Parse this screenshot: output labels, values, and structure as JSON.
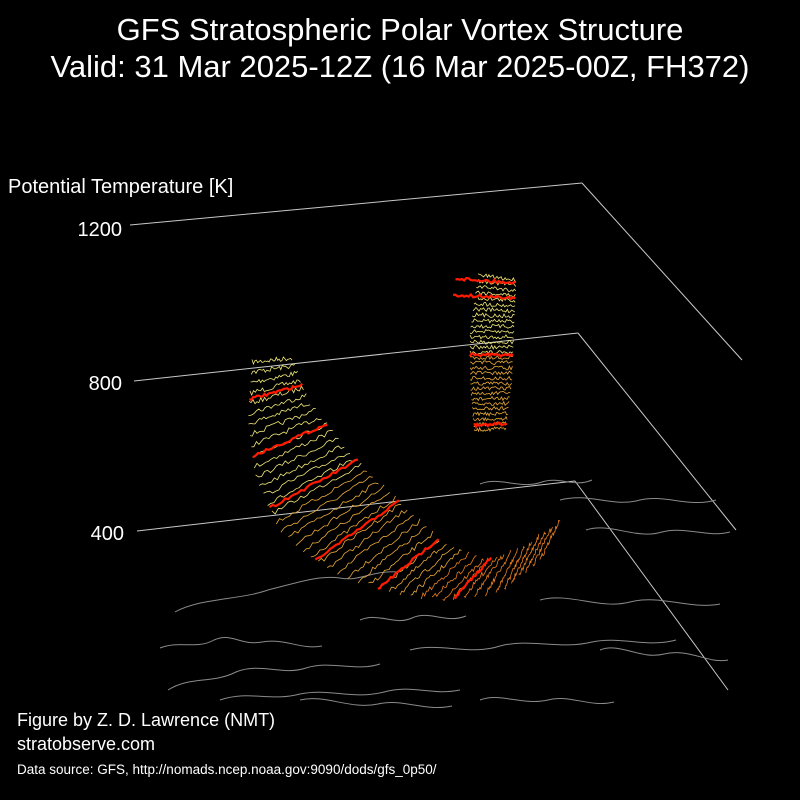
{
  "header": {
    "title": "GFS Stratospheric Polar Vortex Structure",
    "subtitle": "Valid: 31 Mar 2025-12Z  (16 Mar 2025-00Z, FH372)"
  },
  "credits": {
    "author": "Figure by Z. D. Lawrence (NMT)",
    "website": "stratobserve.com",
    "source": "Data source: GFS, http://nomads.ncep.noaa.gov:9090/dods/gfs_0p50/"
  },
  "colors": {
    "background": "#000000",
    "text": "#ffffff",
    "grid": "#c8c8c8",
    "coastline": "#8a8a8a",
    "contour_highlight": "#ff1a00",
    "vortex_upper": "#f0e878",
    "vortex_mid": "#e8a838",
    "vortex_lower": "#e87e20"
  },
  "chart_data": {
    "type": "3d-isosurface",
    "zlabel": "Potential Temperature [K]",
    "zticks": [
      400,
      800,
      1200
    ],
    "zlim": [
      300,
      1300
    ],
    "grid": true,
    "features": [
      "vortex-main-lobe",
      "vortex-upper-column",
      "coastlines"
    ]
  }
}
